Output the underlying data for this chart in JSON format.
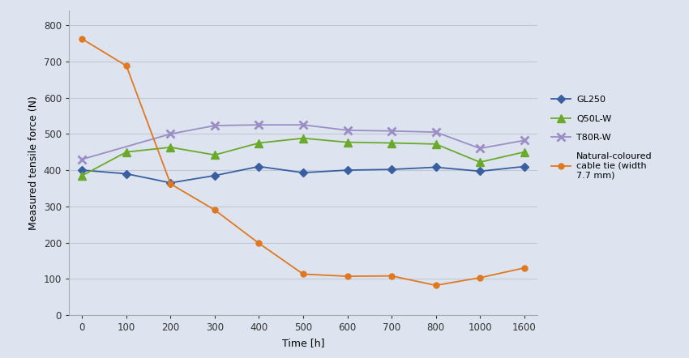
{
  "x_positions": [
    0,
    1,
    2,
    3,
    4,
    5,
    6,
    7,
    8,
    9,
    10
  ],
  "x_labels": [
    "0",
    "100",
    "200",
    "300",
    "400",
    "500",
    "600",
    "700",
    "800",
    "1000",
    "1600"
  ],
  "GL250": [
    400,
    390,
    365,
    385,
    410,
    393,
    400,
    402,
    408,
    397,
    410
  ],
  "Q50L_W": [
    385,
    450,
    463,
    442,
    475,
    488,
    477,
    475,
    472,
    422,
    450
  ],
  "T80R_W": [
    430,
    null,
    500,
    523,
    525,
    525,
    510,
    508,
    505,
    460,
    482
  ],
  "Natural": [
    762,
    688,
    362,
    290,
    198,
    113,
    107,
    108,
    82,
    103,
    130
  ],
  "GL250_color": "#3a5fa0",
  "Q50L_W_color": "#6aaa2a",
  "T80R_W_color": "#9b8ec4",
  "Natural_color": "#e07820",
  "ylabel": "Measured tensile force (N)",
  "xlabel": "Time [h]",
  "legend_GL250": "GL250",
  "legend_Q50L": "Q50L-W",
  "legend_T80R": "T80R-W",
  "legend_Natural": "Natural-coloured\ncable tie (width\n7.7 mm)",
  "ylim": [
    0,
    840
  ],
  "yticks": [
    0,
    100,
    200,
    300,
    400,
    500,
    600,
    700,
    800
  ],
  "bg_color": "#dde4ef",
  "grid_color": "#c0c8d8"
}
